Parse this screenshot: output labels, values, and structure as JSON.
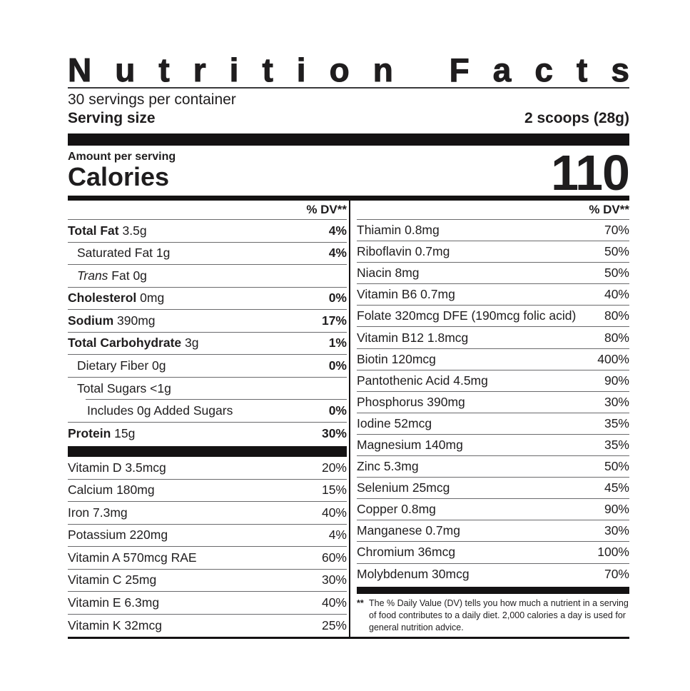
{
  "colors": {
    "ink": "#1f1d1e",
    "bar": "#141213",
    "line": "#6a6a6c"
  },
  "header": {
    "title": "Nutrition Facts",
    "servings_per_container": "30 servings per container",
    "serving_size_label": "Serving size",
    "serving_size_value": "2 scoops (28g)"
  },
  "calories": {
    "amount_per_serving": "Amount per serving",
    "label": "Calories",
    "value": "110"
  },
  "dv_header": "% DV**",
  "left_column": {
    "main_rows": [
      {
        "bold": "Total Fat",
        "text": " 3.5g",
        "dv": "4%",
        "dvBold": true
      },
      {
        "text": "Saturated Fat 1g",
        "dv": "4%",
        "dvBold": true,
        "ind": 1
      },
      {
        "italic": "Trans",
        "text": " Fat 0g",
        "dv": "",
        "ind": 1
      },
      {
        "bold": "Cholesterol",
        "text": " 0mg",
        "dv": "0%",
        "dvBold": true
      },
      {
        "bold": "Sodium",
        "text": " 390mg",
        "dv": "17%",
        "dvBold": true
      },
      {
        "bold": "Total Carbohydrate",
        "text": " 3g",
        "dv": "1%",
        "dvBold": true
      },
      {
        "text": "Dietary Fiber 0g",
        "dv": "0%",
        "dvBold": true,
        "ind": 1
      },
      {
        "text": "Total Sugars <1g",
        "dv": "",
        "ind": 1,
        "sepIndent": true
      },
      {
        "text": "Includes 0g Added Sugars",
        "dv": "0%",
        "dvBold": true,
        "ind": 2
      },
      {
        "bold": "Protein",
        "text": " 15g",
        "dv": "30%",
        "dvBold": true,
        "nosep": true
      }
    ],
    "vitamin_rows": [
      {
        "text": "Vitamin D 3.5mcg",
        "dv": "20%"
      },
      {
        "text": "Calcium 180mg",
        "dv": "15%"
      },
      {
        "text": "Iron 7.3mg",
        "dv": "40%"
      },
      {
        "text": "Potassium 220mg",
        "dv": "4%"
      },
      {
        "text": "Vitamin A 570mcg RAE",
        "dv": "60%"
      },
      {
        "text": "Vitamin C 25mg",
        "dv": "30%"
      },
      {
        "text": "Vitamin E 6.3mg",
        "dv": "40%"
      },
      {
        "text": "Vitamin K 32mcg",
        "dv": "25%",
        "nosep": true
      }
    ]
  },
  "right_column": {
    "rows": [
      {
        "text": "Thiamin 0.8mg",
        "dv": "70%"
      },
      {
        "text": "Riboflavin 0.7mg",
        "dv": "50%"
      },
      {
        "text": "Niacin 8mg",
        "dv": "50%"
      },
      {
        "text": "Vitamin B6 0.7mg",
        "dv": "40%"
      },
      {
        "text": "Folate 320mcg DFE (190mcg folic acid)",
        "dv": "80%"
      },
      {
        "text": "Vitamin B12 1.8mcg",
        "dv": "80%"
      },
      {
        "text": "Biotin 120mcg",
        "dv": "400%"
      },
      {
        "text": "Pantothenic Acid 4.5mg",
        "dv": "90%"
      },
      {
        "text": "Phosphorus 390mg",
        "dv": "30%"
      },
      {
        "text": "Iodine 52mcg",
        "dv": "35%"
      },
      {
        "text": "Magnesium 140mg",
        "dv": "35%"
      },
      {
        "text": "Zinc 5.3mg",
        "dv": "50%"
      },
      {
        "text": "Selenium 25mcg",
        "dv": "45%"
      },
      {
        "text": "Copper 0.8mg",
        "dv": "90%"
      },
      {
        "text": "Manganese 0.7mg",
        "dv": "30%"
      },
      {
        "text": "Chromium 36mcg",
        "dv": "100%"
      },
      {
        "text": "Molybdenum 30mcg",
        "dv": "70%",
        "nosep": true
      }
    ]
  },
  "footnote": {
    "mark": "**",
    "text": "The % Daily Value (DV) tells you how much a nutrient in a serving of food contributes to a daily diet. 2,000 calories a day is used for general nutrition advice."
  }
}
